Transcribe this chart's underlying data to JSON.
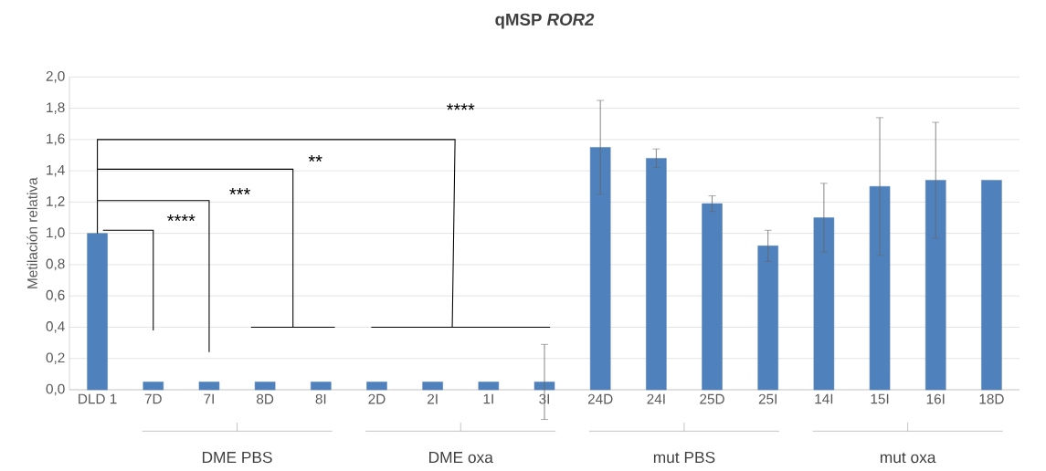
{
  "chart_data": {
    "type": "bar",
    "title": "qMSP *ROR2*",
    "ylabel": "Metilación relativa",
    "categories": [
      "DLD 1",
      "7D",
      "7I",
      "8D",
      "8I",
      "2D",
      "2I",
      "1I",
      "3I",
      "24D",
      "24I",
      "25D",
      "25I",
      "14I",
      "15I",
      "16I",
      "18D"
    ],
    "values": [
      1.0,
      0.05,
      0.05,
      0.05,
      0.05,
      0.05,
      0.05,
      0.05,
      0.05,
      1.55,
      1.48,
      1.19,
      0.92,
      1.1,
      1.3,
      1.34,
      1.34
    ],
    "errors": [
      null,
      null,
      null,
      null,
      null,
      null,
      null,
      null,
      0.24,
      0.3,
      0.06,
      0.05,
      0.1,
      0.22,
      0.44,
      0.37,
      null
    ],
    "color": "#4f81bd",
    "ylim": [
      0,
      2
    ],
    "yticks": [
      {
        "value": 0,
        "label": "0,0"
      },
      {
        "value": 0.2,
        "label": "0,2"
      },
      {
        "value": 0.4,
        "label": "0,4"
      },
      {
        "value": 0.6,
        "label": "0,6"
      },
      {
        "value": 0.8,
        "label": "0,8"
      },
      {
        "value": 1.0,
        "label": "1,0"
      },
      {
        "value": 1.2,
        "label": "1,2"
      },
      {
        "value": 1.4,
        "label": "1,4"
      },
      {
        "value": 1.6,
        "label": "1,6"
      },
      {
        "value": 1.8,
        "label": "1,8"
      },
      {
        "value": 2.0,
        "label": "2,0"
      }
    ],
    "grid": "y",
    "annotations": [
      "****",
      "***",
      "**",
      "****",
      "DME PBS",
      "DME oxa",
      "mut PBS",
      "mut oxa"
    ]
  }
}
